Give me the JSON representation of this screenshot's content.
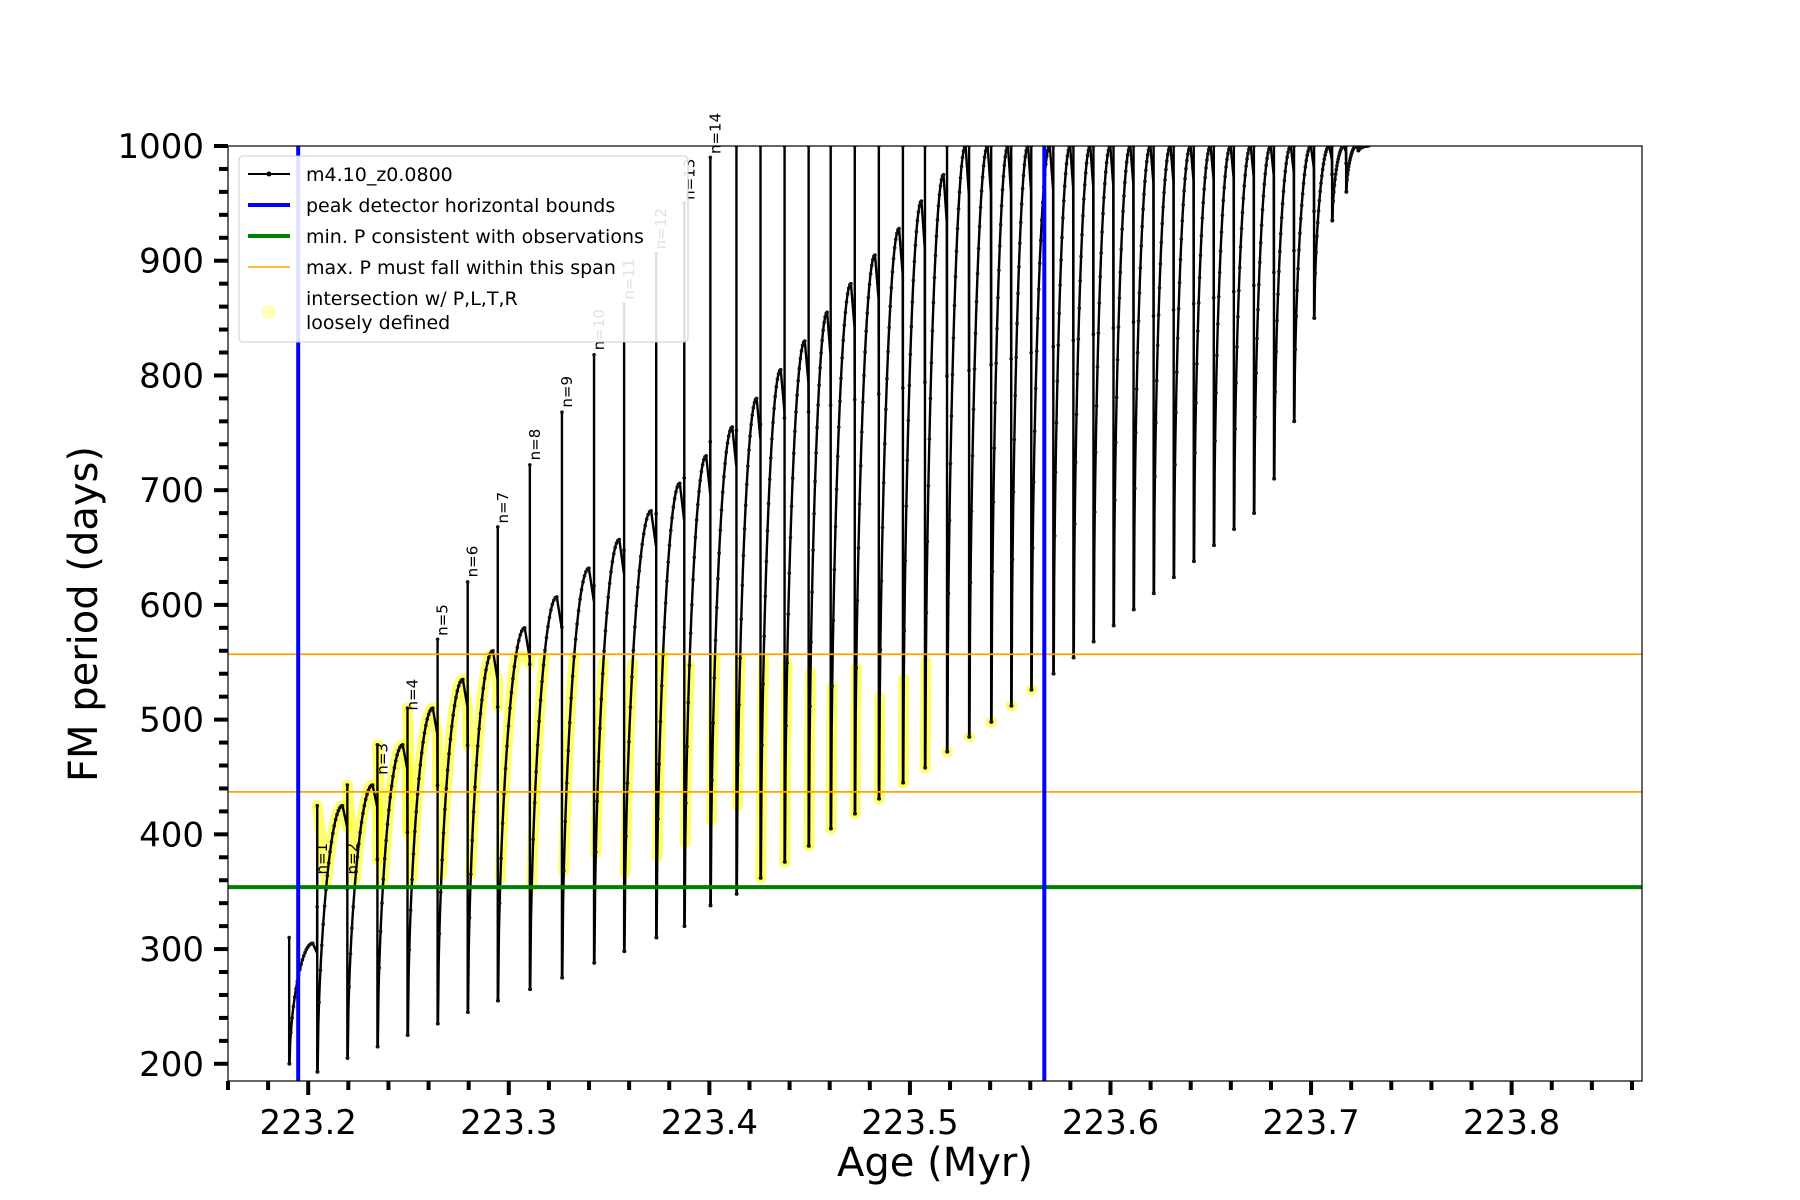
{
  "chart_data": {
    "type": "line",
    "xlabel": "Age (Myr)",
    "ylabel": "FM period (days)",
    "xlim": [
      223.16,
      223.865
    ],
    "ylim": [
      185,
      1000
    ],
    "xticks": [
      223.2,
      223.3,
      223.4,
      223.5,
      223.6,
      223.7,
      223.8
    ],
    "xtick_labels": [
      "223.2",
      "223.3",
      "223.4",
      "223.5",
      "223.6",
      "223.7",
      "223.8"
    ],
    "yticks": [
      200,
      300,
      400,
      500,
      600,
      700,
      800,
      900,
      1000
    ],
    "ytick_labels": [
      "200",
      "300",
      "400",
      "500",
      "600",
      "700",
      "800",
      "900",
      "1000"
    ],
    "legend": {
      "position": "top-left",
      "entries": [
        {
          "label": "m4.10_z0.0800",
          "color": "#000000",
          "style": "line-marker"
        },
        {
          "label": "peak detector horizontal bounds",
          "color": "#0000ff",
          "style": "thick-line"
        },
        {
          "label": "min. P consistent with observations",
          "color": "#008000",
          "style": "thick-line"
        },
        {
          "label": "max. P must fall within this span",
          "color": "#ffa500",
          "style": "thin-line"
        },
        {
          "label": "intersection w/ P,L,T,R",
          "label2": "loosely defined",
          "color": "#ffff00",
          "style": "marker"
        }
      ]
    },
    "vertical_lines": [
      {
        "x": 223.195,
        "color": "#0000ff"
      },
      {
        "x": 223.567,
        "color": "#0000ff"
      }
    ],
    "horizontal_lines": [
      {
        "y": 354,
        "color": "#008000"
      },
      {
        "y": 437,
        "color": "#ffa500"
      },
      {
        "y": 557,
        "color": "#ffa500"
      }
    ],
    "intersection_band": {
      "y_min": 354,
      "y_max": 557,
      "color": "#ffff00"
    },
    "series": [
      {
        "color": "#000000",
        "pulses": [
          {
            "t": 223.1905,
            "min": 200,
            "max": 310,
            "peak": 305,
            "label": "",
            "text_color": "#000000"
          },
          {
            "t": 223.2045,
            "min": 193,
            "max": 425,
            "peak": 425,
            "label": "n=1",
            "text_color": "#000000"
          },
          {
            "t": 223.2195,
            "min": 205,
            "max": 443,
            "peak": 443,
            "label": "n=2",
            "text_color": "#000000"
          },
          {
            "t": 223.2345,
            "min": 215,
            "max": 478,
            "peak": 478,
            "label": "n=3",
            "text_color": "#000000"
          },
          {
            "t": 223.2495,
            "min": 225,
            "max": 510,
            "peak": 510,
            "label": "n=4",
            "text_color": "#000000"
          },
          {
            "t": 223.2645,
            "min": 235,
            "max": 570,
            "peak": 535,
            "label": "n=5",
            "text_color": "#000000"
          },
          {
            "t": 223.2795,
            "min": 245,
            "max": 620,
            "peak": 560,
            "label": "n=6",
            "text_color": "#000000"
          },
          {
            "t": 223.2945,
            "min": 255,
            "max": 668,
            "peak": 580,
            "label": "n=7",
            "text_color": "#000000"
          },
          {
            "t": 223.3105,
            "min": 265,
            "max": 722,
            "peak": 607,
            "label": "n=8",
            "text_color": "#000000"
          },
          {
            "t": 223.3265,
            "min": 275,
            "max": 768,
            "peak": 632,
            "label": "n=9",
            "text_color": "#000000"
          },
          {
            "t": 223.3425,
            "min": 288,
            "max": 818,
            "peak": 657,
            "label": "n=10",
            "text_color": "#aaaaaa"
          },
          {
            "t": 223.3575,
            "min": 298,
            "max": 862,
            "peak": 682,
            "label": "n=11",
            "text_color": "#cccccc"
          },
          {
            "t": 223.3735,
            "min": 310,
            "max": 906,
            "peak": 706,
            "label": "n=12",
            "text_color": "#cccccc"
          },
          {
            "t": 223.3875,
            "min": 320,
            "max": 950,
            "peak": 730,
            "label": "n=13",
            "text_color": "#000000"
          },
          {
            "t": 223.4005,
            "min": 338,
            "max": 990,
            "peak": 755,
            "label": "n=14",
            "text_color": "#000000"
          },
          {
            "t": 223.4135,
            "min": 348,
            "max": 1000,
            "peak": 780,
            "label": "",
            "text_color": "#000000"
          },
          {
            "t": 223.4255,
            "min": 362,
            "max": 1000,
            "peak": 805,
            "label": "",
            "text_color": "#000000"
          },
          {
            "t": 223.4375,
            "min": 376,
            "max": 1000,
            "peak": 830,
            "label": "",
            "text_color": "#000000"
          },
          {
            "t": 223.4495,
            "min": 390,
            "max": 1000,
            "peak": 855,
            "label": "",
            "text_color": "#000000"
          },
          {
            "t": 223.4605,
            "min": 405,
            "max": 1000,
            "peak": 880,
            "label": "",
            "text_color": "#000000"
          },
          {
            "t": 223.4725,
            "min": 418,
            "max": 1000,
            "peak": 905,
            "label": "",
            "text_color": "#000000"
          },
          {
            "t": 223.4845,
            "min": 431,
            "max": 1000,
            "peak": 928,
            "label": "",
            "text_color": "#000000"
          },
          {
            "t": 223.4965,
            "min": 445,
            "max": 1000,
            "peak": 952,
            "label": "",
            "text_color": "#000000"
          },
          {
            "t": 223.5075,
            "min": 458,
            "max": 1000,
            "peak": 975,
            "label": "",
            "text_color": "#000000"
          },
          {
            "t": 223.5185,
            "min": 472,
            "max": 1000,
            "peak": 1000,
            "label": "",
            "text_color": "#000000"
          },
          {
            "t": 223.5295,
            "min": 485,
            "max": 1000,
            "peak": 1000,
            "label": "",
            "text_color": "#000000"
          },
          {
            "t": 223.5405,
            "min": 498,
            "max": 1000,
            "peak": 1000,
            "label": "",
            "text_color": "#000000"
          },
          {
            "t": 223.5505,
            "min": 512,
            "max": 1000,
            "peak": 1000,
            "label": "",
            "text_color": "#000000"
          },
          {
            "t": 223.5605,
            "min": 526,
            "max": 1000,
            "peak": 1000,
            "label": "",
            "text_color": "#000000"
          },
          {
            "t": 223.5715,
            "min": 540,
            "max": 1000,
            "peak": 1000,
            "label": "",
            "text_color": "#000000"
          },
          {
            "t": 223.5815,
            "min": 554,
            "max": 1000,
            "peak": 1000,
            "label": "",
            "text_color": "#000000"
          },
          {
            "t": 223.5915,
            "min": 568,
            "max": 1000,
            "peak": 1000,
            "label": "",
            "text_color": "#000000"
          },
          {
            "t": 223.6015,
            "min": 582,
            "max": 1000,
            "peak": 1000,
            "label": "",
            "text_color": "#000000"
          },
          {
            "t": 223.6115,
            "min": 596,
            "max": 1000,
            "peak": 1000,
            "label": "",
            "text_color": "#000000"
          },
          {
            "t": 223.6215,
            "min": 610,
            "max": 1000,
            "peak": 1000,
            "label": "",
            "text_color": "#000000"
          },
          {
            "t": 223.6315,
            "min": 624,
            "max": 1000,
            "peak": 1000,
            "label": "",
            "text_color": "#000000"
          },
          {
            "t": 223.6415,
            "min": 638,
            "max": 1000,
            "peak": 1000,
            "label": "",
            "text_color": "#000000"
          },
          {
            "t": 223.6515,
            "min": 652,
            "max": 1000,
            "peak": 1000,
            "label": "",
            "text_color": "#000000"
          },
          {
            "t": 223.6615,
            "min": 666,
            "max": 1000,
            "peak": 1000,
            "label": "",
            "text_color": "#000000"
          },
          {
            "t": 223.6715,
            "min": 680,
            "max": 1000,
            "peak": 1000,
            "label": "",
            "text_color": "#000000"
          },
          {
            "t": 223.6815,
            "min": 710,
            "max": 1000,
            "peak": 1000,
            "label": "",
            "text_color": "#000000"
          },
          {
            "t": 223.6915,
            "min": 760,
            "max": 1000,
            "peak": 1000,
            "label": "",
            "text_color": "#000000"
          },
          {
            "t": 223.7015,
            "min": 850,
            "max": 1000,
            "peak": 1000,
            "label": "",
            "text_color": "#000000"
          },
          {
            "t": 223.7105,
            "min": 935,
            "max": 1000,
            "peak": 1000,
            "label": "",
            "text_color": "#000000"
          },
          {
            "t": 223.7175,
            "min": 960,
            "max": 1000,
            "peak": 1000,
            "label": "",
            "text_color": "#000000"
          },
          {
            "t": 223.7235,
            "min": 996,
            "max": 1000,
            "peak": 1000,
            "label": "",
            "text_color": "#000000"
          }
        ]
      }
    ]
  }
}
